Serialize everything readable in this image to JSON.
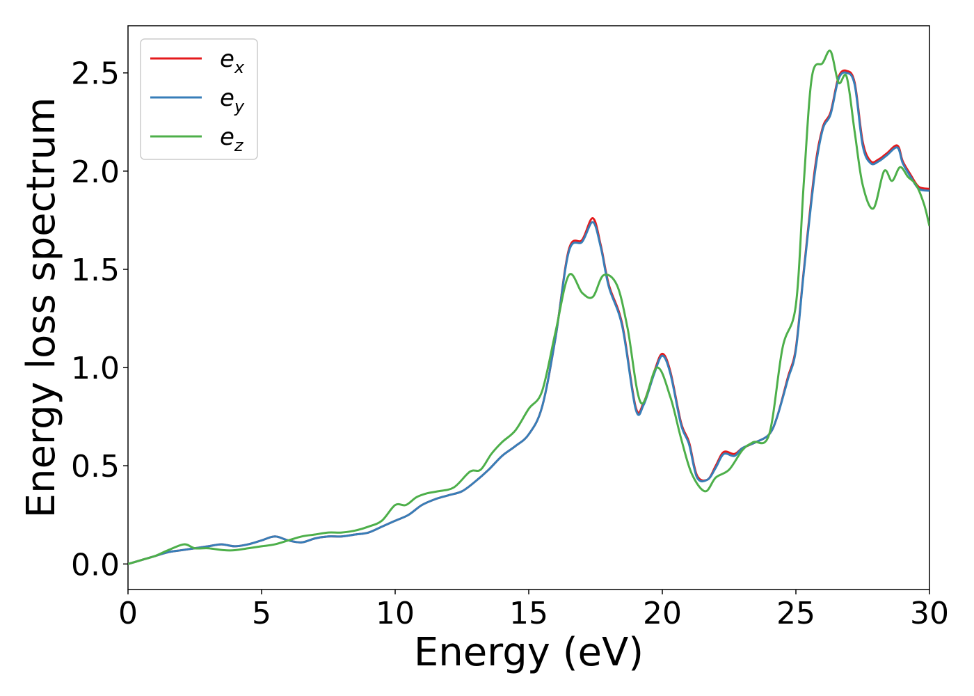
{
  "chart_data": {
    "type": "line",
    "title": "",
    "xlabel": "Energy (eV)",
    "ylabel": "Energy loss spectrum",
    "xlim": [
      0,
      30
    ],
    "ylim": [
      -0.13,
      2.74
    ],
    "xticks": [
      0,
      5,
      10,
      15,
      20,
      25,
      30
    ],
    "xtick_labels": [
      "0",
      "5",
      "10",
      "15",
      "20",
      "25",
      "30"
    ],
    "yticks": [
      0.0,
      0.5,
      1.0,
      1.5,
      2.0,
      2.5
    ],
    "ytick_labels": [
      "0.0",
      "0.5",
      "1.0",
      "1.5",
      "2.0",
      "2.5"
    ],
    "grid": false,
    "legend_position": "top-left",
    "series": [
      {
        "name": "e_x",
        "label_base": "e",
        "label_sub": "x",
        "color": "#e41a1c",
        "x": [
          0,
          0.5,
          1.0,
          1.5,
          2.0,
          2.5,
          3.0,
          3.5,
          4.0,
          4.5,
          5.0,
          5.5,
          6.0,
          6.5,
          7.0,
          7.5,
          8.0,
          8.5,
          9.0,
          9.5,
          10.0,
          10.5,
          11.0,
          11.5,
          12.0,
          12.5,
          13.0,
          13.5,
          14.0,
          14.5,
          15.0,
          15.5,
          16.0,
          16.5,
          17.0,
          17.4,
          17.7,
          18.0,
          18.5,
          19.0,
          19.3,
          19.7,
          20.0,
          20.3,
          20.7,
          21.0,
          21.3,
          21.7,
          22.0,
          22.3,
          22.7,
          23.0,
          23.5,
          24.0,
          24.3,
          24.7,
          25.0,
          25.3,
          25.7,
          26.0,
          26.3,
          26.6,
          26.9,
          27.2,
          27.5,
          27.8,
          28.1,
          28.4,
          28.8,
          29.0,
          29.3,
          29.6,
          30.0
        ],
        "y": [
          0.0,
          0.02,
          0.04,
          0.06,
          0.07,
          0.08,
          0.09,
          0.1,
          0.09,
          0.1,
          0.12,
          0.14,
          0.12,
          0.11,
          0.13,
          0.14,
          0.14,
          0.15,
          0.16,
          0.19,
          0.22,
          0.25,
          0.3,
          0.33,
          0.35,
          0.37,
          0.42,
          0.48,
          0.55,
          0.6,
          0.66,
          0.8,
          1.15,
          1.6,
          1.65,
          1.76,
          1.62,
          1.42,
          1.22,
          0.8,
          0.82,
          0.98,
          1.07,
          0.98,
          0.72,
          0.62,
          0.45,
          0.43,
          0.5,
          0.57,
          0.56,
          0.59,
          0.62,
          0.66,
          0.75,
          0.95,
          1.1,
          1.5,
          2.0,
          2.22,
          2.3,
          2.48,
          2.51,
          2.45,
          2.15,
          2.05,
          2.06,
          2.09,
          2.13,
          2.05,
          1.98,
          1.92,
          1.91
        ]
      },
      {
        "name": "e_y",
        "label_base": "e",
        "label_sub": "y",
        "color": "#377eb8",
        "x": [
          0,
          0.5,
          1.0,
          1.5,
          2.0,
          2.5,
          3.0,
          3.5,
          4.0,
          4.5,
          5.0,
          5.5,
          6.0,
          6.5,
          7.0,
          7.5,
          8.0,
          8.5,
          9.0,
          9.5,
          10.0,
          10.5,
          11.0,
          11.5,
          12.0,
          12.5,
          13.0,
          13.5,
          14.0,
          14.5,
          15.0,
          15.5,
          16.0,
          16.5,
          17.0,
          17.4,
          17.7,
          18.0,
          18.5,
          19.0,
          19.3,
          19.7,
          20.0,
          20.3,
          20.7,
          21.0,
          21.3,
          21.7,
          22.0,
          22.3,
          22.7,
          23.0,
          23.5,
          24.0,
          24.3,
          24.7,
          25.0,
          25.3,
          25.7,
          26.0,
          26.3,
          26.6,
          26.9,
          27.2,
          27.5,
          27.8,
          28.1,
          28.4,
          28.8,
          29.0,
          29.3,
          29.6,
          30.0
        ],
        "y": [
          0.0,
          0.02,
          0.04,
          0.06,
          0.07,
          0.08,
          0.09,
          0.1,
          0.09,
          0.1,
          0.12,
          0.14,
          0.12,
          0.11,
          0.13,
          0.14,
          0.14,
          0.15,
          0.16,
          0.19,
          0.22,
          0.25,
          0.3,
          0.33,
          0.35,
          0.37,
          0.42,
          0.48,
          0.55,
          0.6,
          0.66,
          0.8,
          1.15,
          1.59,
          1.64,
          1.74,
          1.61,
          1.41,
          1.21,
          0.79,
          0.81,
          0.97,
          1.06,
          0.97,
          0.71,
          0.61,
          0.44,
          0.43,
          0.49,
          0.56,
          0.55,
          0.59,
          0.62,
          0.66,
          0.75,
          0.94,
          1.09,
          1.49,
          1.98,
          2.21,
          2.29,
          2.47,
          2.5,
          2.44,
          2.13,
          2.04,
          2.05,
          2.08,
          2.12,
          2.04,
          1.97,
          1.91,
          1.9
        ]
      },
      {
        "name": "e_z",
        "label_base": "e",
        "label_sub": "z",
        "color": "#4daf4a",
        "x": [
          0,
          0.5,
          1.0,
          1.5,
          2.1,
          2.5,
          3.0,
          3.6,
          4.0,
          4.5,
          5.0,
          5.5,
          6.0,
          6.5,
          7.0,
          7.5,
          8.0,
          8.5,
          9.0,
          9.5,
          10.0,
          10.4,
          10.8,
          11.2,
          11.6,
          12.2,
          12.8,
          13.2,
          13.6,
          14.0,
          14.5,
          15.0,
          15.5,
          16.0,
          16.5,
          17.0,
          17.4,
          17.8,
          18.3,
          18.7,
          19.2,
          19.8,
          20.3,
          20.7,
          21.1,
          21.6,
          22.0,
          22.5,
          23.0,
          23.4,
          24.0,
          24.5,
          25.0,
          25.3,
          25.6,
          26.0,
          26.3,
          26.6,
          26.9,
          27.2,
          27.5,
          27.9,
          28.3,
          28.6,
          28.9,
          29.2,
          29.5,
          29.8,
          30.0
        ],
        "y": [
          0.0,
          0.02,
          0.04,
          0.07,
          0.1,
          0.08,
          0.08,
          0.07,
          0.07,
          0.08,
          0.09,
          0.1,
          0.12,
          0.14,
          0.15,
          0.16,
          0.16,
          0.17,
          0.19,
          0.22,
          0.3,
          0.3,
          0.34,
          0.36,
          0.37,
          0.39,
          0.47,
          0.48,
          0.56,
          0.62,
          0.68,
          0.79,
          0.88,
          1.18,
          1.47,
          1.38,
          1.36,
          1.47,
          1.42,
          1.2,
          0.82,
          1.0,
          0.85,
          0.64,
          0.46,
          0.37,
          0.44,
          0.48,
          0.58,
          0.62,
          0.66,
          1.1,
          1.32,
          1.95,
          2.48,
          2.55,
          2.61,
          2.45,
          2.48,
          2.2,
          1.93,
          1.81,
          2.0,
          1.95,
          2.02,
          1.97,
          1.93,
          1.83,
          1.72
        ]
      }
    ]
  }
}
